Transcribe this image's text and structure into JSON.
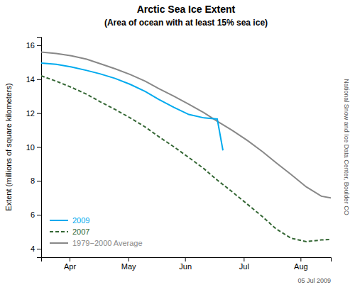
{
  "chart_data": {
    "type": "line",
    "title": "Arctic Sea Ice Extent",
    "subtitle": "(Area of ocean with at least 15% sea ice)",
    "y_label": "Extent (millions of square kilometers)",
    "annotations": [
      "National Snow and Ice Data Center, Boulder CO",
      "05 Jul 2009"
    ],
    "xlim": [
      0,
      153
    ],
    "xticks": [
      {
        "value": 15,
        "label": "Apr"
      },
      {
        "value": 46,
        "label": "May"
      },
      {
        "value": 76,
        "label": "Jun"
      },
      {
        "value": 107,
        "label": "Jul"
      },
      {
        "value": 137,
        "label": "Aug"
      }
    ],
    "ylim": [
      3.5,
      16.5
    ],
    "yticks": [
      4,
      6,
      8,
      10,
      12,
      14,
      16
    ],
    "grid": false,
    "legend": "lower left",
    "series": [
      {
        "name": "2009",
        "color": "#00aaee",
        "line_style": "solid",
        "x": [
          0,
          8,
          16,
          24,
          31,
          39,
          47,
          55,
          62,
          70,
          78,
          86,
          93,
          96
        ],
        "values": [
          14.95,
          14.88,
          14.72,
          14.52,
          14.32,
          14.05,
          13.7,
          13.28,
          12.82,
          12.35,
          11.92,
          11.72,
          11.65,
          9.8
        ]
      },
      {
        "name": "2007",
        "color": "#336633",
        "line_style": "dashed",
        "x": [
          0,
          8,
          16,
          24,
          31,
          39,
          47,
          55,
          62,
          70,
          78,
          86,
          93,
          101,
          109,
          117,
          124,
          132,
          140,
          148,
          153
        ],
        "values": [
          14.2,
          13.88,
          13.52,
          13.12,
          12.68,
          12.22,
          11.72,
          11.18,
          10.62,
          10.02,
          9.38,
          8.72,
          8.05,
          7.35,
          6.62,
          5.88,
          5.18,
          4.62,
          4.42,
          4.52,
          4.55
        ]
      },
      {
        "name": "1979−2000 Average",
        "color": "#888888",
        "line_style": "solid",
        "x": [
          0,
          8,
          16,
          24,
          31,
          39,
          47,
          55,
          62,
          70,
          78,
          86,
          93,
          101,
          109,
          117,
          124,
          132,
          140,
          148,
          153
        ],
        "values": [
          15.6,
          15.52,
          15.38,
          15.18,
          14.92,
          14.62,
          14.28,
          13.88,
          13.45,
          13.0,
          12.52,
          12.02,
          11.52,
          10.98,
          10.38,
          9.72,
          9.08,
          8.38,
          7.65,
          7.1,
          7.0
        ]
      }
    ]
  }
}
